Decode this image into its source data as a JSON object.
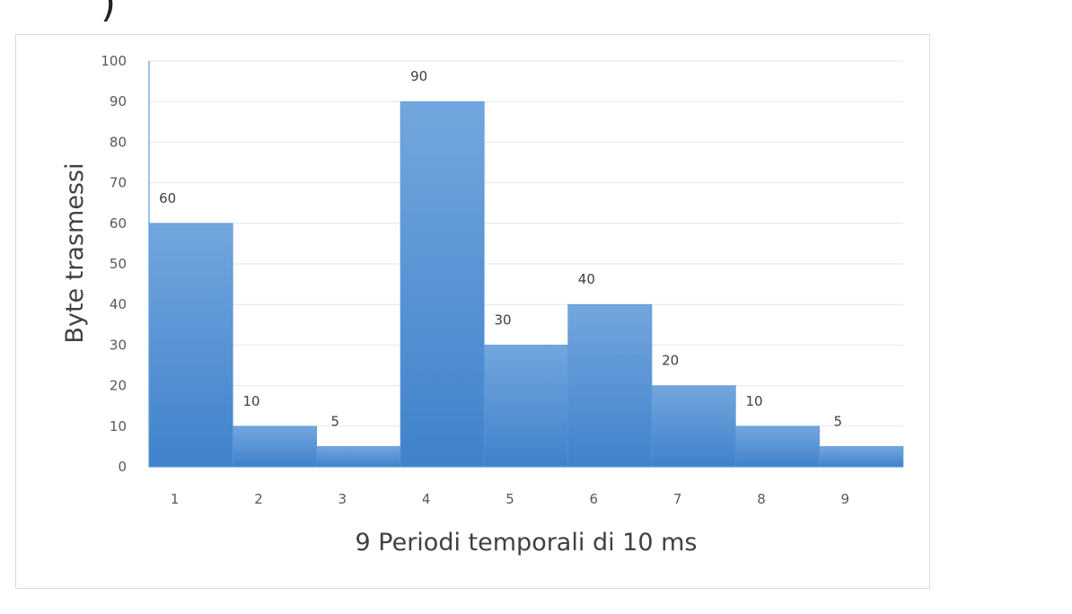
{
  "header": {
    "partial_mark": ")"
  },
  "chart_data": {
    "type": "bar",
    "categories": [
      "1",
      "2",
      "3",
      "4",
      "5",
      "6",
      "7",
      "8",
      "9"
    ],
    "values": [
      60,
      10,
      5,
      90,
      30,
      40,
      20,
      10,
      5
    ],
    "data_labels": [
      "60",
      "10",
      "5",
      "90",
      "30",
      "40",
      "20",
      "10",
      "5"
    ],
    "title": "",
    "xlabel": "9 Periodi temporali di 10 ms",
    "ylabel": "Byte trasmessi",
    "ylim": [
      0,
      100
    ],
    "yticks": [
      "0",
      "10",
      "20",
      "30",
      "40",
      "50",
      "60",
      "70",
      "80",
      "90",
      "100"
    ],
    "grid": true,
    "legend": "none",
    "colors": {
      "bar_top": "#73A6DE",
      "bar_bottom": "#3F82CB",
      "bar_edge": "#5A97D8",
      "gridline": "#E5E5E5",
      "axis": "#5B9BD5"
    }
  }
}
